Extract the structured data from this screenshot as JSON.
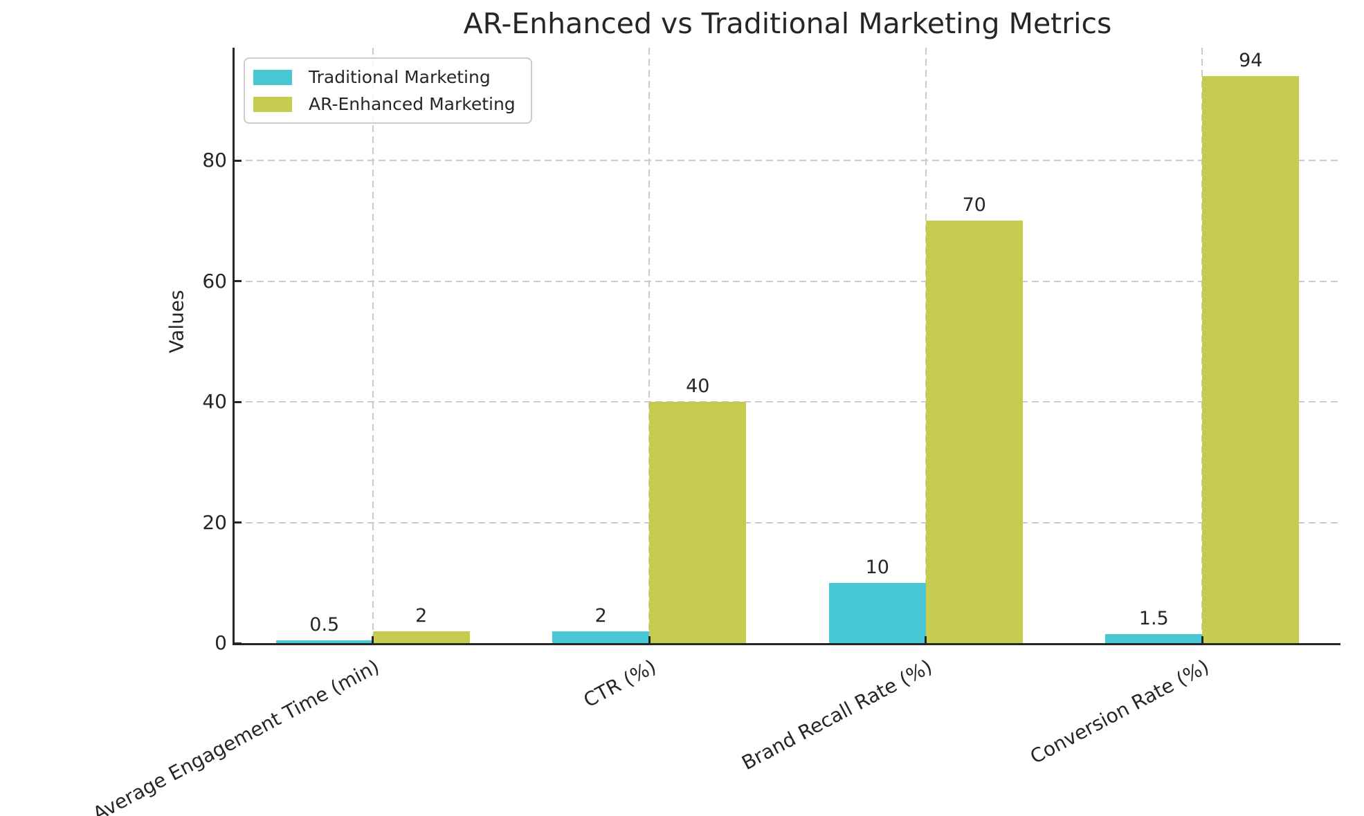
{
  "chart_data": {
    "type": "bar",
    "title": "AR-Enhanced vs Traditional Marketing Metrics",
    "ylabel": "Values",
    "xlabel": "",
    "categories": [
      "Average Engagement Time (min)",
      "CTR (%)",
      "Brand Recall Rate (%)",
      "Conversion Rate (%)"
    ],
    "series": [
      {
        "name": "Traditional Marketing",
        "color": "#48c8d4",
        "values": [
          0.5,
          2,
          10,
          1.5
        ],
        "labels": [
          "0.5",
          "2",
          "10",
          "1.5"
        ]
      },
      {
        "name": "AR-Enhanced Marketing",
        "color": "#c6cc4f",
        "values": [
          2,
          40,
          70,
          94
        ],
        "labels": [
          "2",
          "40",
          "70",
          "94"
        ]
      }
    ],
    "yticks": [
      0,
      20,
      40,
      60,
      80
    ],
    "ylim": [
      0,
      98.7
    ],
    "grid": true,
    "grid_style": "dashed",
    "legend_position": "upper left",
    "bar_width_fraction": 0.35,
    "colors": {
      "text": "#262626",
      "grid": "#cbcbcb",
      "spine": "#262626",
      "background": "#ffffff",
      "legend_border": "#cccccc"
    }
  }
}
